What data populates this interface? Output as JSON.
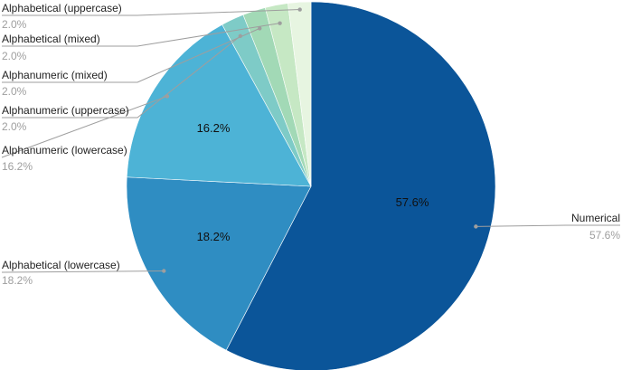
{
  "chart_data": {
    "type": "pie",
    "title": "",
    "slices": [
      {
        "label": "Numerical",
        "value": 57.6,
        "display": "57.6%",
        "color": "#0b5599"
      },
      {
        "label": "Alphabetical (lowercase)",
        "value": 18.2,
        "display": "18.2%",
        "color": "#2f8dc2"
      },
      {
        "label": "Alphanumeric (lowercase)",
        "value": 16.2,
        "display": "16.2%",
        "color": "#4db3d6"
      },
      {
        "label": "Alphanumeric (uppercase)",
        "value": 2.0,
        "display": "2.0%",
        "color": "#7ecbc7"
      },
      {
        "label": "Alphanumeric (mixed)",
        "value": 2.0,
        "display": "2.0%",
        "color": "#a2d9b6"
      },
      {
        "label": "Alphabetical (mixed)",
        "value": 2.0,
        "display": "2.0%",
        "color": "#c6e8c4"
      },
      {
        "label": "Alphabetical (uppercase)",
        "value": 2.0,
        "display": "2.0%",
        "color": "#e7f5e1"
      }
    ],
    "inside_labels": [
      "57.6%",
      "18.2%",
      "16.2%"
    ]
  }
}
